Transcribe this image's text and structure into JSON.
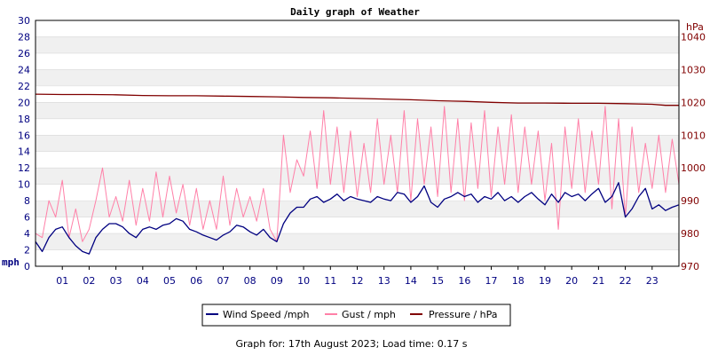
{
  "chart_data": {
    "type": "line",
    "title": "Daily graph of Weather",
    "footer": "Graph for: 17th August 2023; Load time: 0.17 s",
    "x_unit": "hour of day",
    "x_range": [
      0,
      24
    ],
    "x_ticks": [
      "01",
      "02",
      "03",
      "04",
      "05",
      "06",
      "07",
      "08",
      "09",
      "10",
      "11",
      "12",
      "13",
      "14",
      "15",
      "16",
      "17",
      "18",
      "19",
      "20",
      "21",
      "22",
      "23"
    ],
    "y_left": {
      "label": "mph",
      "range": [
        0,
        30
      ],
      "ticks": [
        "0",
        "2",
        "4",
        "6",
        "8",
        "10",
        "12",
        "14",
        "16",
        "18",
        "20",
        "22",
        "24",
        "26",
        "28",
        "30"
      ]
    },
    "y_right": {
      "label": "hPa",
      "range": [
        970,
        1045
      ],
      "ticks": [
        "970",
        "980",
        "990",
        "1000",
        "1010",
        "1020",
        "1030",
        "1040"
      ]
    },
    "grid": "horizontal bands",
    "legend_position": "bottom-center",
    "colors": {
      "wind": "#000080",
      "gust": "#ff80a8",
      "pressure": "#800000",
      "left_axis_text": "#000080",
      "right_axis_text": "#800000",
      "band": "#f0f0f0",
      "grid": "#d8d8d8"
    },
    "series": [
      {
        "name": "Wind Speed /mph",
        "color": "#000080",
        "axis": "left",
        "x": [
          0,
          0.25,
          0.5,
          0.75,
          1,
          1.25,
          1.5,
          1.75,
          2,
          2.25,
          2.5,
          2.75,
          3,
          3.25,
          3.5,
          3.75,
          4,
          4.25,
          4.5,
          4.75,
          5,
          5.25,
          5.5,
          5.75,
          6,
          6.25,
          6.5,
          6.75,
          7,
          7.25,
          7.5,
          7.75,
          8,
          8.25,
          8.5,
          8.75,
          9,
          9.25,
          9.5,
          9.75,
          10,
          10.25,
          10.5,
          10.75,
          11,
          11.25,
          11.5,
          11.75,
          12,
          12.25,
          12.5,
          12.75,
          13,
          13.25,
          13.5,
          13.75,
          14,
          14.25,
          14.5,
          14.75,
          15,
          15.25,
          15.5,
          15.75,
          16,
          16.25,
          16.5,
          16.75,
          17,
          17.25,
          17.5,
          17.75,
          18,
          18.25,
          18.5,
          18.75,
          19,
          19.25,
          19.5,
          19.75,
          20,
          20.25,
          20.5,
          20.75,
          21,
          21.25,
          21.5,
          21.75,
          22,
          22.25,
          22.5,
          22.75,
          23,
          23.25,
          23.5,
          23.75,
          24
        ],
        "values": [
          3,
          1.8,
          3.5,
          4.5,
          4.8,
          3.5,
          2.5,
          1.8,
          1.5,
          3.5,
          4.5,
          5.2,
          5.2,
          4.8,
          4,
          3.5,
          4.5,
          4.8,
          4.5,
          5,
          5.2,
          5.8,
          5.5,
          4.5,
          4.2,
          3.8,
          3.5,
          3.2,
          3.8,
          4.2,
          5,
          4.8,
          4.2,
          3.8,
          4.5,
          3.5,
          3,
          5.2,
          6.5,
          7.2,
          7.2,
          8.2,
          8.5,
          7.8,
          8.2,
          8.8,
          8,
          8.5,
          8.2,
          8,
          7.8,
          8.5,
          8.2,
          8,
          9,
          8.8,
          7.8,
          8.5,
          9.8,
          7.8,
          7.2,
          8.2,
          8.5,
          9,
          8.5,
          8.8,
          7.8,
          8.5,
          8.2,
          9,
          8,
          8.5,
          7.8,
          8.5,
          9,
          8.2,
          7.5,
          8.8,
          7.8,
          9,
          8.5,
          8.8,
          8,
          8.8,
          9.5,
          7.8,
          8.5,
          10.2,
          6,
          7,
          8.5,
          9.5,
          7,
          7.5,
          6.8,
          7.2,
          7.5
        ]
      },
      {
        "name": "Gust / mph",
        "color": "#ff80a8",
        "axis": "left",
        "x": [
          0,
          0.25,
          0.5,
          0.75,
          1,
          1.25,
          1.5,
          1.75,
          2,
          2.25,
          2.5,
          2.75,
          3,
          3.25,
          3.5,
          3.75,
          4,
          4.25,
          4.5,
          4.75,
          5,
          5.25,
          5.5,
          5.75,
          6,
          6.25,
          6.5,
          6.75,
          7,
          7.25,
          7.5,
          7.75,
          8,
          8.25,
          8.5,
          8.75,
          9,
          9.25,
          9.5,
          9.75,
          10,
          10.25,
          10.5,
          10.75,
          11,
          11.25,
          11.5,
          11.75,
          12,
          12.25,
          12.5,
          12.75,
          13,
          13.25,
          13.5,
          13.75,
          14,
          14.25,
          14.5,
          14.75,
          15,
          15.25,
          15.5,
          15.75,
          16,
          16.25,
          16.5,
          16.75,
          17,
          17.25,
          17.5,
          17.75,
          18,
          18.25,
          18.5,
          18.75,
          19,
          19.25,
          19.5,
          19.75,
          20,
          20.25,
          20.5,
          20.75,
          21,
          21.25,
          21.5,
          21.75,
          22,
          22.25,
          22.5,
          22.75,
          23,
          23.25,
          23.5,
          23.75,
          24
        ],
        "values": [
          4,
          3.5,
          8,
          6,
          10.5,
          3.5,
          7,
          3,
          4.5,
          8,
          12,
          6,
          8.5,
          5.5,
          10.5,
          5,
          9.5,
          5.5,
          11.5,
          6,
          11,
          6.5,
          10,
          5,
          9.5,
          4.5,
          8,
          4.5,
          11,
          5,
          9.5,
          6,
          8.5,
          5.5,
          9.5,
          4.5,
          3,
          16,
          9,
          13,
          11,
          16.5,
          9.5,
          19,
          10,
          17,
          9,
          16.5,
          8.5,
          15,
          9,
          18,
          10,
          16,
          9,
          19,
          8,
          18,
          10,
          17,
          8.5,
          19.5,
          9,
          18,
          8,
          17.5,
          9.5,
          19,
          8.5,
          17,
          10,
          18.5,
          9,
          17,
          10,
          16.5,
          8,
          15,
          4.5,
          17,
          9.5,
          18,
          9,
          16.5,
          10,
          19.5,
          7,
          18,
          6,
          17,
          9,
          15,
          9.5,
          16,
          9,
          15.5,
          10
        ]
      },
      {
        "name": "Pressure / hPa",
        "color": "#800000",
        "axis": "right",
        "x": [
          0,
          1,
          2,
          3,
          4,
          5,
          6,
          7,
          8,
          9,
          10,
          11,
          12,
          13,
          14,
          15,
          16,
          17,
          18,
          19,
          20,
          21,
          22,
          23,
          23.5,
          24
        ],
        "values": [
          1022.5,
          1022.4,
          1022.4,
          1022.3,
          1022.1,
          1022.0,
          1022.0,
          1021.9,
          1021.8,
          1021.7,
          1021.5,
          1021.4,
          1021.2,
          1021.0,
          1020.8,
          1020.5,
          1020.3,
          1020.0,
          1019.8,
          1019.8,
          1019.7,
          1019.7,
          1019.6,
          1019.4,
          1019.1,
          1019.1
        ]
      }
    ]
  }
}
